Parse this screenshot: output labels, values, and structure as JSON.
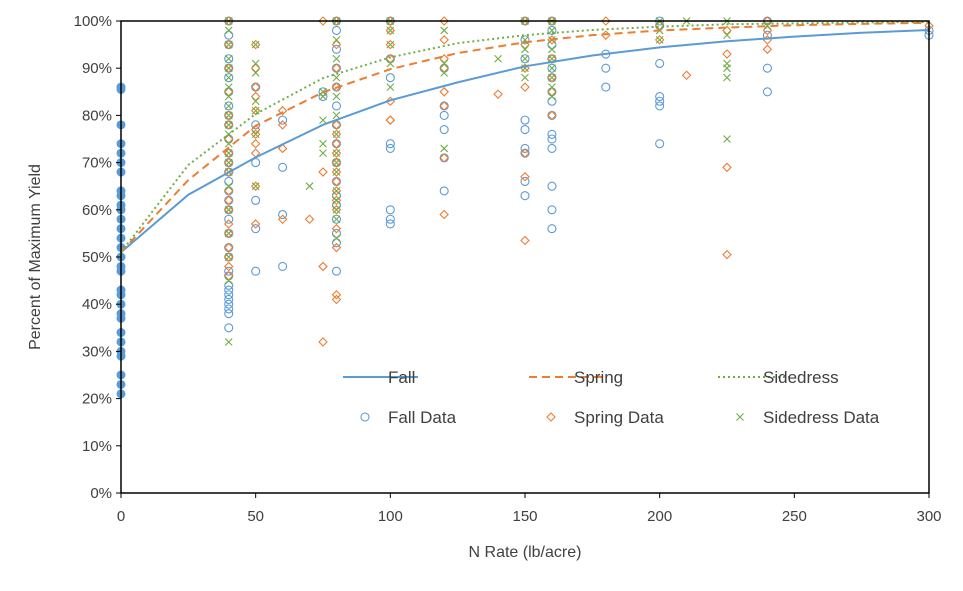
{
  "chart_data": {
    "type": "scatter",
    "title": "",
    "xlabel": "N Rate (lb/acre)",
    "ylabel": "Percent of Maximum Yield",
    "xlim": [
      0,
      300
    ],
    "ylim": [
      0,
      100
    ],
    "x_ticks": [
      "0",
      "50",
      "100",
      "150",
      "200",
      "250",
      "300"
    ],
    "y_ticks": [
      "0%",
      "10%",
      "20%",
      "30%",
      "40%",
      "50%",
      "60%",
      "70%",
      "80%",
      "90%",
      "100%"
    ],
    "grid": false,
    "legend_position": "inside-bottom-center",
    "colors": {
      "fall": "#5B9BD5",
      "spring": "#ED7D31",
      "sidedress": "#70AD47"
    },
    "curves": [
      {
        "name": "Fall",
        "style": "solid",
        "color": "#5B9BD5",
        "x": [
          0,
          25,
          50,
          75,
          100,
          125,
          150,
          175,
          200,
          225,
          250,
          275,
          300
        ],
        "y": [
          51,
          63.2,
          71.1,
          78.0,
          83.2,
          87.0,
          90.4,
          92.7,
          94.4,
          95.7,
          96.7,
          97.5,
          98.1
        ]
      },
      {
        "name": "Spring",
        "style": "dashed",
        "color": "#ED7D31",
        "x": [
          0,
          25,
          50,
          75,
          100,
          125,
          150,
          175,
          200,
          225,
          250,
          275,
          300
        ],
        "y": [
          51,
          66.3,
          77.8,
          84.9,
          89.8,
          93.2,
          95.5,
          97.0,
          98.0,
          98.6,
          99.1,
          99.4,
          99.6
        ]
      },
      {
        "name": "Sidedress",
        "style": "dotted",
        "color": "#70AD47",
        "x": [
          0,
          25,
          50,
          75,
          100,
          125,
          150,
          175,
          200,
          225,
          250,
          275,
          300
        ],
        "y": [
          51,
          69.5,
          80.3,
          87.9,
          92.3,
          95.3,
          97.0,
          98.1,
          98.8,
          99.3,
          99.5,
          99.7,
          99.8
        ]
      }
    ],
    "series": [
      {
        "name": "Fall Data",
        "marker": "circle",
        "color": "#5B9BD5",
        "x": [
          40,
          40,
          40,
          40,
          40,
          40,
          40,
          40,
          40,
          40,
          40,
          40,
          40,
          40,
          40,
          40,
          40,
          40,
          40,
          40,
          40,
          40,
          40,
          40,
          40,
          40,
          40,
          40,
          40,
          40,
          40,
          40,
          50,
          50,
          50,
          50,
          50,
          50,
          60,
          60,
          60,
          60,
          75,
          75,
          80,
          80,
          80,
          80,
          80,
          80,
          80,
          80,
          80,
          80,
          80,
          80,
          80,
          80,
          80,
          80,
          100,
          100,
          100,
          100,
          100,
          100,
          100,
          100,
          120,
          120,
          120,
          120,
          120,
          120,
          150,
          150,
          150,
          150,
          150,
          150,
          150,
          150,
          150,
          160,
          160,
          160,
          160,
          160,
          160,
          160,
          160,
          160,
          160,
          160,
          160,
          160,
          160,
          160,
          180,
          180,
          180,
          200,
          200,
          200,
          200,
          200,
          200,
          200,
          240,
          240,
          240,
          240,
          300,
          300
        ],
        "y": [
          35,
          38,
          39,
          40,
          41,
          42,
          43,
          44,
          46,
          47,
          50,
          52,
          55,
          58,
          60,
          62,
          64,
          66,
          68,
          70,
          72,
          75,
          78,
          80,
          82,
          85,
          88,
          90,
          92,
          95,
          97,
          100,
          47,
          56,
          62,
          70,
          78,
          86,
          48,
          59,
          69,
          79,
          84,
          85,
          47,
          53,
          55,
          58,
          61,
          63,
          66,
          70,
          74,
          78,
          82,
          86,
          90,
          94,
          98,
          100,
          57,
          58,
          60,
          73,
          74,
          88,
          92,
          100,
          64,
          71,
          77,
          80,
          82,
          90,
          63,
          66,
          72,
          73,
          77,
          79,
          92,
          96,
          100,
          56,
          60,
          65,
          73,
          75,
          76,
          80,
          83,
          85,
          88,
          90,
          92,
          95,
          98,
          100,
          86,
          90,
          93,
          74,
          82,
          83,
          84,
          91,
          99,
          100,
          85,
          90,
          97,
          100,
          97,
          98
        ]
      },
      {
        "name": "Spring Data",
        "marker": "diamond",
        "color": "#ED7D31",
        "x": [
          40,
          40,
          40,
          40,
          40,
          40,
          40,
          40,
          40,
          40,
          40,
          40,
          40,
          40,
          40,
          40,
          40,
          40,
          40,
          50,
          50,
          50,
          50,
          50,
          50,
          50,
          50,
          50,
          50,
          50,
          60,
          60,
          60,
          60,
          70,
          75,
          75,
          75,
          75,
          80,
          80,
          80,
          80,
          80,
          80,
          80,
          80,
          80,
          80,
          80,
          80,
          80,
          80,
          80,
          80,
          80,
          80,
          100,
          100,
          100,
          100,
          100,
          100,
          100,
          120,
          120,
          120,
          120,
          120,
          120,
          120,
          120,
          140,
          150,
          150,
          150,
          150,
          150,
          150,
          150,
          160,
          160,
          160,
          160,
          160,
          160,
          180,
          180,
          200,
          200,
          210,
          225,
          225,
          225,
          225,
          240,
          240,
          240,
          240,
          300
        ],
        "y": [
          46,
          48,
          50,
          52,
          55,
          57,
          60,
          62,
          64,
          68,
          70,
          72,
          75,
          78,
          80,
          85,
          90,
          95,
          100,
          57,
          65,
          72,
          74,
          76,
          77,
          81,
          84,
          86,
          90,
          95,
          58,
          73,
          78,
          81,
          58,
          32,
          48,
          68,
          100,
          41,
          42,
          52,
          56,
          60,
          62,
          64,
          66,
          68,
          70,
          72,
          74,
          76,
          78,
          86,
          90,
          95,
          100,
          79,
          79,
          83,
          92,
          95,
          98,
          100,
          59,
          71,
          82,
          85,
          90,
          92,
          96,
          100,
          84.5,
          53.5,
          67,
          72,
          86,
          90,
          95,
          100,
          80,
          85,
          88,
          92,
          96,
          100,
          97,
          100,
          96,
          99,
          88.5,
          50.5,
          69,
          93,
          98,
          94,
          96,
          98,
          100,
          99
        ]
      },
      {
        "name": "Sidedress Data",
        "marker": "x",
        "color": "#70AD47",
        "x": [
          40,
          40,
          40,
          40,
          40,
          40,
          40,
          40,
          40,
          40,
          40,
          40,
          40,
          40,
          40,
          40,
          40,
          40,
          40,
          40,
          40,
          40,
          50,
          50,
          50,
          50,
          50,
          50,
          50,
          70,
          75,
          75,
          75,
          75,
          75,
          80,
          80,
          80,
          80,
          80,
          80,
          80,
          80,
          80,
          80,
          80,
          80,
          80,
          80,
          80,
          100,
          100,
          100,
          100,
          100,
          120,
          120,
          120,
          120,
          140,
          150,
          150,
          150,
          150,
          150,
          150,
          160,
          160,
          160,
          160,
          160,
          160,
          160,
          160,
          160,
          200,
          200,
          200,
          210,
          225,
          225,
          225,
          225,
          225,
          225,
          240
        ],
        "y": [
          32,
          45,
          50,
          55,
          60,
          65,
          68,
          70,
          72,
          74,
          76,
          78,
          80,
          82,
          84,
          86,
          88,
          90,
          92,
          95,
          98,
          100,
          65,
          76,
          81,
          83,
          89,
          91,
          95,
          65,
          72,
          74,
          79,
          84,
          85,
          54,
          58,
          60,
          62,
          64,
          68,
          70,
          72,
          76,
          80,
          84,
          88,
          92,
          96,
          100,
          86,
          91,
          95,
          98,
          100,
          73,
          89,
          91,
          98,
          92,
          88,
          90,
          92,
          94,
          96,
          100,
          84,
          86,
          88,
          90,
          92,
          94,
          96,
          98,
          100,
          96,
          98,
          100,
          100,
          75,
          88,
          90,
          91,
          97,
          100,
          99
        ]
      },
      {
        "marker": "filled-circle",
        "color": "#5B9BD5",
        "x": [
          0,
          0,
          0,
          0,
          0,
          0,
          0,
          0,
          0,
          0,
          0,
          0,
          0,
          0,
          0,
          0,
          0,
          0,
          0,
          0,
          0,
          0,
          0,
          0,
          0,
          0,
          0,
          0,
          0,
          0
        ],
        "y": [
          21,
          23,
          25,
          29,
          30,
          32,
          34,
          37,
          38,
          40,
          42,
          43,
          47,
          48,
          50,
          52,
          54,
          56,
          58,
          60,
          61,
          63,
          64,
          68,
          70,
          72,
          74,
          78,
          85.5,
          86
        ]
      }
    ]
  }
}
